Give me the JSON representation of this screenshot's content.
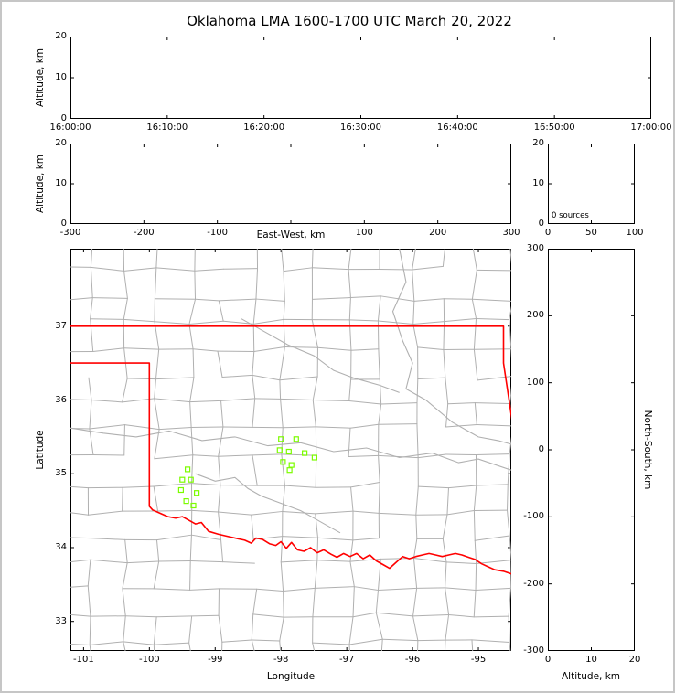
{
  "title": "Oklahoma LMA 1600-1700 UTC March 20, 2022",
  "colors": {
    "axis": "#000000",
    "figure_border": "#c6c6c6",
    "county_lines": "#b0b0b0",
    "state_border": "#ff0000",
    "source_marker": "#7CFC00"
  },
  "chart_data": [
    {
      "id": "time_height",
      "type": "scatter",
      "ylabel": "Altitude, km",
      "ylim": [
        0,
        20
      ],
      "yticks": [
        {
          "v": 0,
          "label": "0"
        },
        {
          "v": 10,
          "label": "10"
        },
        {
          "v": 20,
          "label": "20"
        }
      ],
      "xlim": [
        0,
        3600
      ],
      "xticks": [
        {
          "v": 0,
          "label": "16:00:00"
        },
        {
          "v": 600,
          "label": "16:10:00"
        },
        {
          "v": 1200,
          "label": "16:20:00"
        },
        {
          "v": 1800,
          "label": "16:30:00"
        },
        {
          "v": 2400,
          "label": "16:40:00"
        },
        {
          "v": 3000,
          "label": "16:50:00"
        },
        {
          "v": 3600,
          "label": "17:00:00"
        }
      ],
      "points": []
    },
    {
      "id": "ew_height",
      "type": "scatter",
      "xlabel": "East-West, km",
      "ylabel": "Altitude, km",
      "xlim": [
        -300,
        300
      ],
      "xticks": [
        {
          "v": -300,
          "label": "-300"
        },
        {
          "v": -200,
          "label": "-200"
        },
        {
          "v": -100,
          "label": "-100"
        },
        {
          "v": 0,
          "label": ""
        },
        {
          "v": 100,
          "label": "100"
        },
        {
          "v": 200,
          "label": "200"
        },
        {
          "v": 300,
          "label": "300"
        }
      ],
      "ylim": [
        0,
        20
      ],
      "yticks": [
        {
          "v": 0,
          "label": "0"
        },
        {
          "v": 10,
          "label": "10"
        },
        {
          "v": 20,
          "label": "20"
        }
      ],
      "points": []
    },
    {
      "id": "alt_histogram",
      "type": "bar",
      "annotation": "0 sources",
      "xlim": [
        0,
        100
      ],
      "xticks": [
        {
          "v": 0,
          "label": "0"
        },
        {
          "v": 50,
          "label": "50"
        },
        {
          "v": 100,
          "label": "100"
        }
      ],
      "ylim": [
        0,
        20
      ],
      "yticks": [
        {
          "v": 0,
          "label": "0"
        },
        {
          "v": 10,
          "label": "10"
        },
        {
          "v": 20,
          "label": "20"
        }
      ],
      "values": []
    },
    {
      "id": "plan_view_map",
      "type": "scatter",
      "xlabel": "Longitude",
      "ylabel": "Latitude",
      "xlim": [
        -101.2,
        -94.5
      ],
      "xticks": [
        {
          "v": -101,
          "label": "-101"
        },
        {
          "v": -100,
          "label": "-100"
        },
        {
          "v": -99,
          "label": "-99"
        },
        {
          "v": -98,
          "label": "-98"
        },
        {
          "v": -97,
          "label": "-97"
        },
        {
          "v": -96,
          "label": "-96"
        },
        {
          "v": -95,
          "label": "-95"
        }
      ],
      "ylim": [
        32.6,
        38.05
      ],
      "yticks": [
        {
          "v": 33,
          "label": "33"
        },
        {
          "v": 34,
          "label": "34"
        },
        {
          "v": 35,
          "label": "35"
        },
        {
          "v": 36,
          "label": "36"
        },
        {
          "v": 37,
          "label": "37"
        }
      ],
      "sources": [
        [
          -99.42,
          35.06
        ],
        [
          -99.5,
          34.92
        ],
        [
          -99.37,
          34.92
        ],
        [
          -99.52,
          34.78
        ],
        [
          -99.28,
          34.74
        ],
        [
          -99.44,
          34.63
        ],
        [
          -99.33,
          34.57
        ],
        [
          -98.0,
          35.47
        ],
        [
          -97.77,
          35.47
        ],
        [
          -98.02,
          35.32
        ],
        [
          -97.88,
          35.3
        ],
        [
          -97.64,
          35.28
        ],
        [
          -97.97,
          35.16
        ],
        [
          -97.84,
          35.12
        ],
        [
          -97.49,
          35.22
        ],
        [
          -97.87,
          35.05
        ]
      ],
      "state_border": [
        [
          [
            -101.2,
            37.0
          ],
          [
            -94.618,
            37.0
          ],
          [
            -94.618,
            36.5
          ],
          [
            -94.43,
            35.38
          ]
        ],
        [
          [
            -101.2,
            36.5
          ],
          [
            -100.0,
            36.5
          ],
          [
            -100.0,
            34.56
          ],
          [
            -99.95,
            34.51
          ],
          [
            -99.85,
            34.47
          ],
          [
            -99.72,
            34.42
          ],
          [
            -99.6,
            34.4
          ],
          [
            -99.5,
            34.42
          ],
          [
            -99.4,
            34.37
          ],
          [
            -99.3,
            34.32
          ],
          [
            -99.21,
            34.34
          ],
          [
            -99.1,
            34.22
          ],
          [
            -98.95,
            34.18
          ],
          [
            -98.8,
            34.15
          ],
          [
            -98.65,
            34.12
          ],
          [
            -98.55,
            34.1
          ],
          [
            -98.45,
            34.06
          ],
          [
            -98.38,
            34.13
          ],
          [
            -98.28,
            34.11
          ],
          [
            -98.17,
            34.05
          ],
          [
            -98.08,
            34.03
          ],
          [
            -98.0,
            34.08
          ],
          [
            -97.92,
            33.99
          ],
          [
            -97.84,
            34.07
          ],
          [
            -97.75,
            33.97
          ],
          [
            -97.65,
            33.95
          ],
          [
            -97.55,
            34.0
          ],
          [
            -97.45,
            33.93
          ],
          [
            -97.35,
            33.97
          ],
          [
            -97.24,
            33.91
          ],
          [
            -97.15,
            33.87
          ],
          [
            -97.05,
            33.92
          ],
          [
            -96.95,
            33.88
          ],
          [
            -96.85,
            33.92
          ],
          [
            -96.75,
            33.85
          ],
          [
            -96.65,
            33.9
          ],
          [
            -96.55,
            33.82
          ],
          [
            -96.45,
            33.77
          ],
          [
            -96.35,
            33.72
          ],
          [
            -96.25,
            33.8
          ],
          [
            -96.15,
            33.88
          ],
          [
            -96.05,
            33.85
          ],
          [
            -95.95,
            33.88
          ],
          [
            -95.85,
            33.9
          ],
          [
            -95.75,
            33.92
          ],
          [
            -95.65,
            33.9
          ],
          [
            -95.55,
            33.88
          ],
          [
            -95.45,
            33.9
          ],
          [
            -95.35,
            33.92
          ],
          [
            -95.25,
            33.9
          ],
          [
            -95.15,
            33.87
          ],
          [
            -95.05,
            33.84
          ],
          [
            -94.95,
            33.78
          ],
          [
            -94.85,
            33.74
          ],
          [
            -94.75,
            33.7
          ],
          [
            -94.62,
            33.68
          ],
          [
            -94.45,
            33.63
          ]
        ]
      ],
      "rivers": [
        [
          [
            -101.2,
            35.62
          ],
          [
            -100.7,
            35.55
          ],
          [
            -100.2,
            35.5
          ],
          [
            -99.7,
            35.58
          ],
          [
            -99.2,
            35.45
          ],
          [
            -98.7,
            35.5
          ],
          [
            -98.2,
            35.38
          ],
          [
            -97.7,
            35.42
          ],
          [
            -97.2,
            35.3
          ],
          [
            -96.7,
            35.35
          ],
          [
            -96.2,
            35.22
          ],
          [
            -95.7,
            35.28
          ],
          [
            -95.3,
            35.15
          ],
          [
            -95.0,
            35.2
          ],
          [
            -94.5,
            35.05
          ]
        ],
        [
          [
            -98.6,
            37.1
          ],
          [
            -98.2,
            36.9
          ],
          [
            -97.9,
            36.75
          ],
          [
            -97.5,
            36.6
          ],
          [
            -97.2,
            36.4
          ],
          [
            -96.9,
            36.3
          ],
          [
            -96.5,
            36.2
          ],
          [
            -96.2,
            36.1
          ]
        ],
        [
          [
            -96.2,
            38.05
          ],
          [
            -96.1,
            37.6
          ],
          [
            -96.3,
            37.2
          ],
          [
            -96.15,
            36.8
          ],
          [
            -96.0,
            36.5
          ],
          [
            -96.1,
            36.15
          ],
          [
            -95.8,
            36.0
          ],
          [
            -95.4,
            35.7
          ],
          [
            -95.0,
            35.5
          ],
          [
            -94.7,
            35.45
          ],
          [
            -94.5,
            35.4
          ]
        ],
        [
          [
            -99.3,
            35.0
          ],
          [
            -99.0,
            34.9
          ],
          [
            -98.7,
            34.95
          ],
          [
            -98.5,
            34.8
          ],
          [
            -98.3,
            34.7
          ],
          [
            -98.0,
            34.6
          ],
          [
            -97.7,
            34.5
          ],
          [
            -97.5,
            34.4
          ],
          [
            -97.3,
            34.3
          ],
          [
            -97.1,
            34.2
          ]
        ]
      ]
    },
    {
      "id": "ns_height",
      "type": "scatter",
      "xlabel": "Altitude, km",
      "ylabel_right": "North-South, km",
      "xlim": [
        0,
        20
      ],
      "xticks": [
        {
          "v": 0,
          "label": "0"
        },
        {
          "v": 10,
          "label": "10"
        },
        {
          "v": 20,
          "label": "20"
        }
      ],
      "ylim": [
        -300,
        300
      ],
      "yticks": [
        {
          "v": -300,
          "label": "-300"
        },
        {
          "v": -200,
          "label": "-200"
        },
        {
          "v": -100,
          "label": "-100"
        },
        {
          "v": 0,
          "label": "0"
        },
        {
          "v": 100,
          "label": "100"
        },
        {
          "v": 200,
          "label": "200"
        },
        {
          "v": 300,
          "label": "300"
        }
      ],
      "points": []
    }
  ]
}
